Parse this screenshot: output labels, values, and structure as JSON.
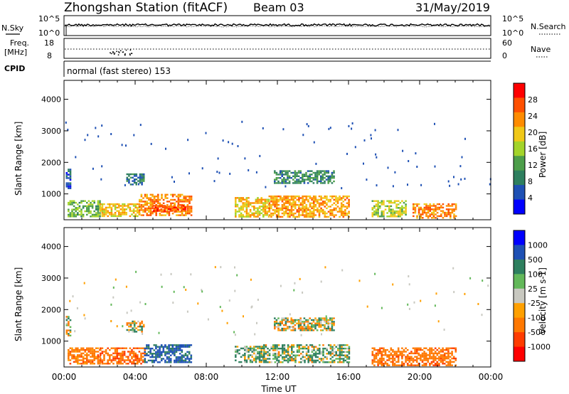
{
  "header": {
    "station": "Zhongshan Station (fitACF)",
    "beam": "Beam 03",
    "date": "31/May/2019"
  },
  "panels": {
    "sky_label": "N.Sky",
    "sky_ticks": [
      "10^5",
      "10^0"
    ],
    "search_label": "N.Search",
    "search_ticks": [
      "10^5",
      "10^0"
    ],
    "freq_label_1": "Freq.",
    "freq_label_2": "[MHz]",
    "freq_ticks": [
      "18",
      "8"
    ],
    "nave_label": "Nave",
    "nave_ticks": [
      "60",
      "0"
    ],
    "cpid_label": "CPID",
    "cpid_text": "normal (fast stereo) 153"
  },
  "colors": {
    "power_scale": [
      "#0000ff",
      "#1e50b4",
      "#2e7f5f",
      "#4d9e4a",
      "#a3d42a",
      "#f0c818",
      "#ff8c00",
      "#ff5000",
      "#ff0000"
    ],
    "velocity_scale": [
      "#0000ff",
      "#1e50b4",
      "#2e7f5f",
      "#63b85a",
      "#c8c8c0",
      "#ffa000",
      "#ff7800",
      "#ff3c00",
      "#ff0000"
    ]
  },
  "chart_data": [
    {
      "type": "heatmap",
      "name": "power",
      "ylabel": "Slant Range [km]",
      "ylim": [
        180,
        4600
      ],
      "yticks": [
        1000,
        2000,
        3000,
        4000
      ],
      "xlim": [
        0,
        24
      ],
      "xticks": [
        "00:00",
        "04:00",
        "08:00",
        "12:00",
        "16:00",
        "20:00",
        "00:00"
      ],
      "xlabel": "",
      "colorbar_label": "Power [dB]",
      "colorbar_ticks": [
        "28",
        "24",
        "20",
        "16",
        "12",
        "8",
        "4"
      ],
      "colorbar_range": [
        0,
        32
      ],
      "patches": [
        {
          "t0": 0.2,
          "t1": 2.0,
          "r0": 300,
          "r1": 800,
          "v": 14
        },
        {
          "t0": 2.0,
          "t1": 4.2,
          "r0": 300,
          "r1": 700,
          "v": 20
        },
        {
          "t0": 4.2,
          "t1": 7.2,
          "r0": 300,
          "r1": 1000,
          "v": 24
        },
        {
          "t0": 5.0,
          "t1": 6.8,
          "r0": 450,
          "r1": 650,
          "v": 27
        },
        {
          "t0": 9.6,
          "t1": 11.5,
          "r0": 300,
          "r1": 900,
          "v": 20
        },
        {
          "t0": 11.5,
          "t1": 16.0,
          "r0": 300,
          "r1": 950,
          "v": 22
        },
        {
          "t0": 11.8,
          "t1": 15.2,
          "r0": 1350,
          "r1": 1750,
          "v": 10
        },
        {
          "t0": 17.3,
          "t1": 19.2,
          "r0": 300,
          "r1": 800,
          "v": 17
        },
        {
          "t0": 19.6,
          "t1": 22.0,
          "r0": 250,
          "r1": 700,
          "v": 24
        },
        {
          "t0": 3.5,
          "t1": 4.5,
          "r0": 1300,
          "r1": 1650,
          "v": 8
        },
        {
          "t0": 0.1,
          "t1": 0.4,
          "r0": 1200,
          "r1": 1800,
          "v": 6
        }
      ]
    },
    {
      "type": "heatmap",
      "name": "velocity",
      "ylabel": "Slant Range [km]",
      "ylim": [
        180,
        4600
      ],
      "yticks": [
        1000,
        2000,
        3000,
        4000
      ],
      "xlim": [
        0,
        24
      ],
      "xticks": [
        "00:00",
        "04:00",
        "08:00",
        "12:00",
        "16:00",
        "20:00",
        "00:00"
      ],
      "xlabel": "Time UT",
      "colorbar_label": "Velocity [m s-1]",
      "colorbar_ticks": [
        "1000",
        "500",
        "100",
        "25",
        "-25",
        "-100",
        "-500",
        "-1000"
      ],
      "colorbar_range": [
        -1200,
        1200
      ],
      "patches": [
        {
          "t0": 0.2,
          "t1": 2.0,
          "r0": 300,
          "r1": 800,
          "v": -300
        },
        {
          "t0": 2.0,
          "t1": 4.5,
          "r0": 300,
          "r1": 800,
          "v": -400
        },
        {
          "t0": 4.5,
          "t1": 7.2,
          "r0": 350,
          "r1": 900,
          "v": 600
        },
        {
          "t0": 9.6,
          "t1": 11.2,
          "r0": 350,
          "r1": 850,
          "v": 150
        },
        {
          "t0": 11.2,
          "t1": 16.0,
          "r0": 350,
          "r1": 900,
          "v": 120
        },
        {
          "t0": 11.8,
          "t1": 15.2,
          "r0": 1350,
          "r1": 1750,
          "v": 0
        },
        {
          "t0": 17.3,
          "t1": 22.0,
          "r0": 250,
          "r1": 800,
          "v": -350
        },
        {
          "t0": 3.5,
          "t1": 4.5,
          "r0": 1300,
          "r1": 1650,
          "v": 0
        },
        {
          "t0": 0.1,
          "t1": 0.4,
          "r0": 1200,
          "r1": 1800,
          "v": 0
        }
      ]
    }
  ]
}
